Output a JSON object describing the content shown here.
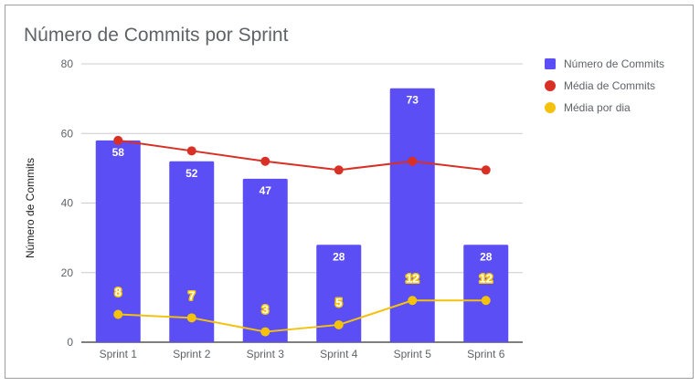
{
  "chart_data": {
    "type": "bar",
    "title": "Número de Commits por Sprint",
    "xlabel": "",
    "ylabel": "Número de Commits",
    "ylim": [
      0,
      80
    ],
    "yticks": [
      0,
      20,
      40,
      60,
      80
    ],
    "grid": true,
    "legend_position": "right",
    "categories": [
      "Sprint 1",
      "Sprint 2",
      "Sprint 3",
      "Sprint 4",
      "Sprint 5",
      "Sprint 6"
    ],
    "series": [
      {
        "name": "Número de Commits",
        "kind": "bar",
        "color": "#5c4ef5",
        "values": [
          58,
          52,
          47,
          28,
          73,
          28
        ],
        "labels": [
          "58",
          "52",
          "47",
          "28",
          "73",
          "28"
        ]
      },
      {
        "name": "Média de Commits",
        "kind": "line",
        "color": "#d93025",
        "values": [
          58,
          55,
          52,
          49.5,
          52,
          49.5
        ]
      },
      {
        "name": "Média por dia",
        "kind": "line",
        "color": "#f4c20d",
        "values": [
          8,
          7,
          3,
          5,
          12,
          12
        ],
        "labels": [
          "8",
          "7",
          "3",
          "5",
          "12",
          "12"
        ]
      }
    ]
  }
}
